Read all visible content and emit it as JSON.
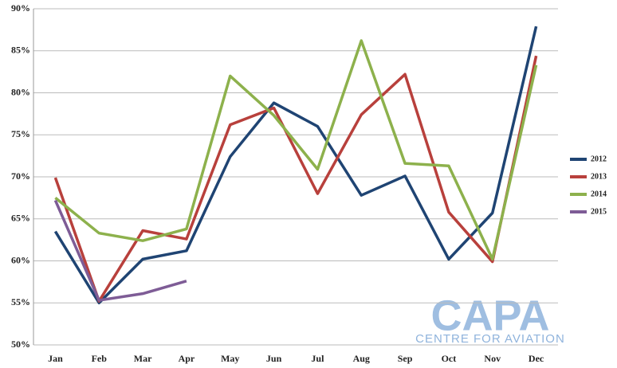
{
  "chart_data": {
    "type": "line",
    "categories": [
      "Jan",
      "Feb",
      "Mar",
      "Apr",
      "May",
      "Jun",
      "Jul",
      "Aug",
      "Sep",
      "Oct",
      "Nov",
      "Dec"
    ],
    "series": [
      {
        "name": "2012",
        "color": "#1f4473",
        "values": [
          63.5,
          55,
          60.2,
          61.2,
          72.4,
          78.8,
          76,
          67.8,
          70.1,
          60.2,
          65.7,
          87.9
        ]
      },
      {
        "name": "2013",
        "color": "#b8403c",
        "values": [
          69.9,
          55.2,
          63.6,
          62.6,
          76.2,
          78.2,
          68,
          77.4,
          82.2,
          65.8,
          59.9,
          84.4
        ]
      },
      {
        "name": "2014",
        "color": "#8db14c",
        "values": [
          67.5,
          63.3,
          62.4,
          63.8,
          82,
          77.3,
          70.9,
          86.2,
          71.6,
          71.3,
          60.2,
          83.3
        ]
      },
      {
        "name": "2015",
        "color": "#7e5c96",
        "values": [
          67.2,
          55.3,
          56.1,
          57.6,
          null,
          null,
          null,
          null,
          null,
          null,
          null,
          null
        ]
      }
    ],
    "ylim": [
      50,
      90
    ],
    "yticks": [
      {
        "value": 50,
        "label": "50%"
      },
      {
        "value": 55,
        "label": "55%"
      },
      {
        "value": 60,
        "label": "60%"
      },
      {
        "value": 65,
        "label": "65%"
      },
      {
        "value": 70,
        "label": "70%"
      },
      {
        "value": 75,
        "label": "75%"
      },
      {
        "value": 80,
        "label": "80%"
      },
      {
        "value": 85,
        "label": "85%"
      },
      {
        "value": 90,
        "label": "90%"
      }
    ],
    "grid": true,
    "legend": "right",
    "watermark": {
      "title": "CAPA",
      "subtitle": "CENTRE FOR AVIATION"
    }
  }
}
